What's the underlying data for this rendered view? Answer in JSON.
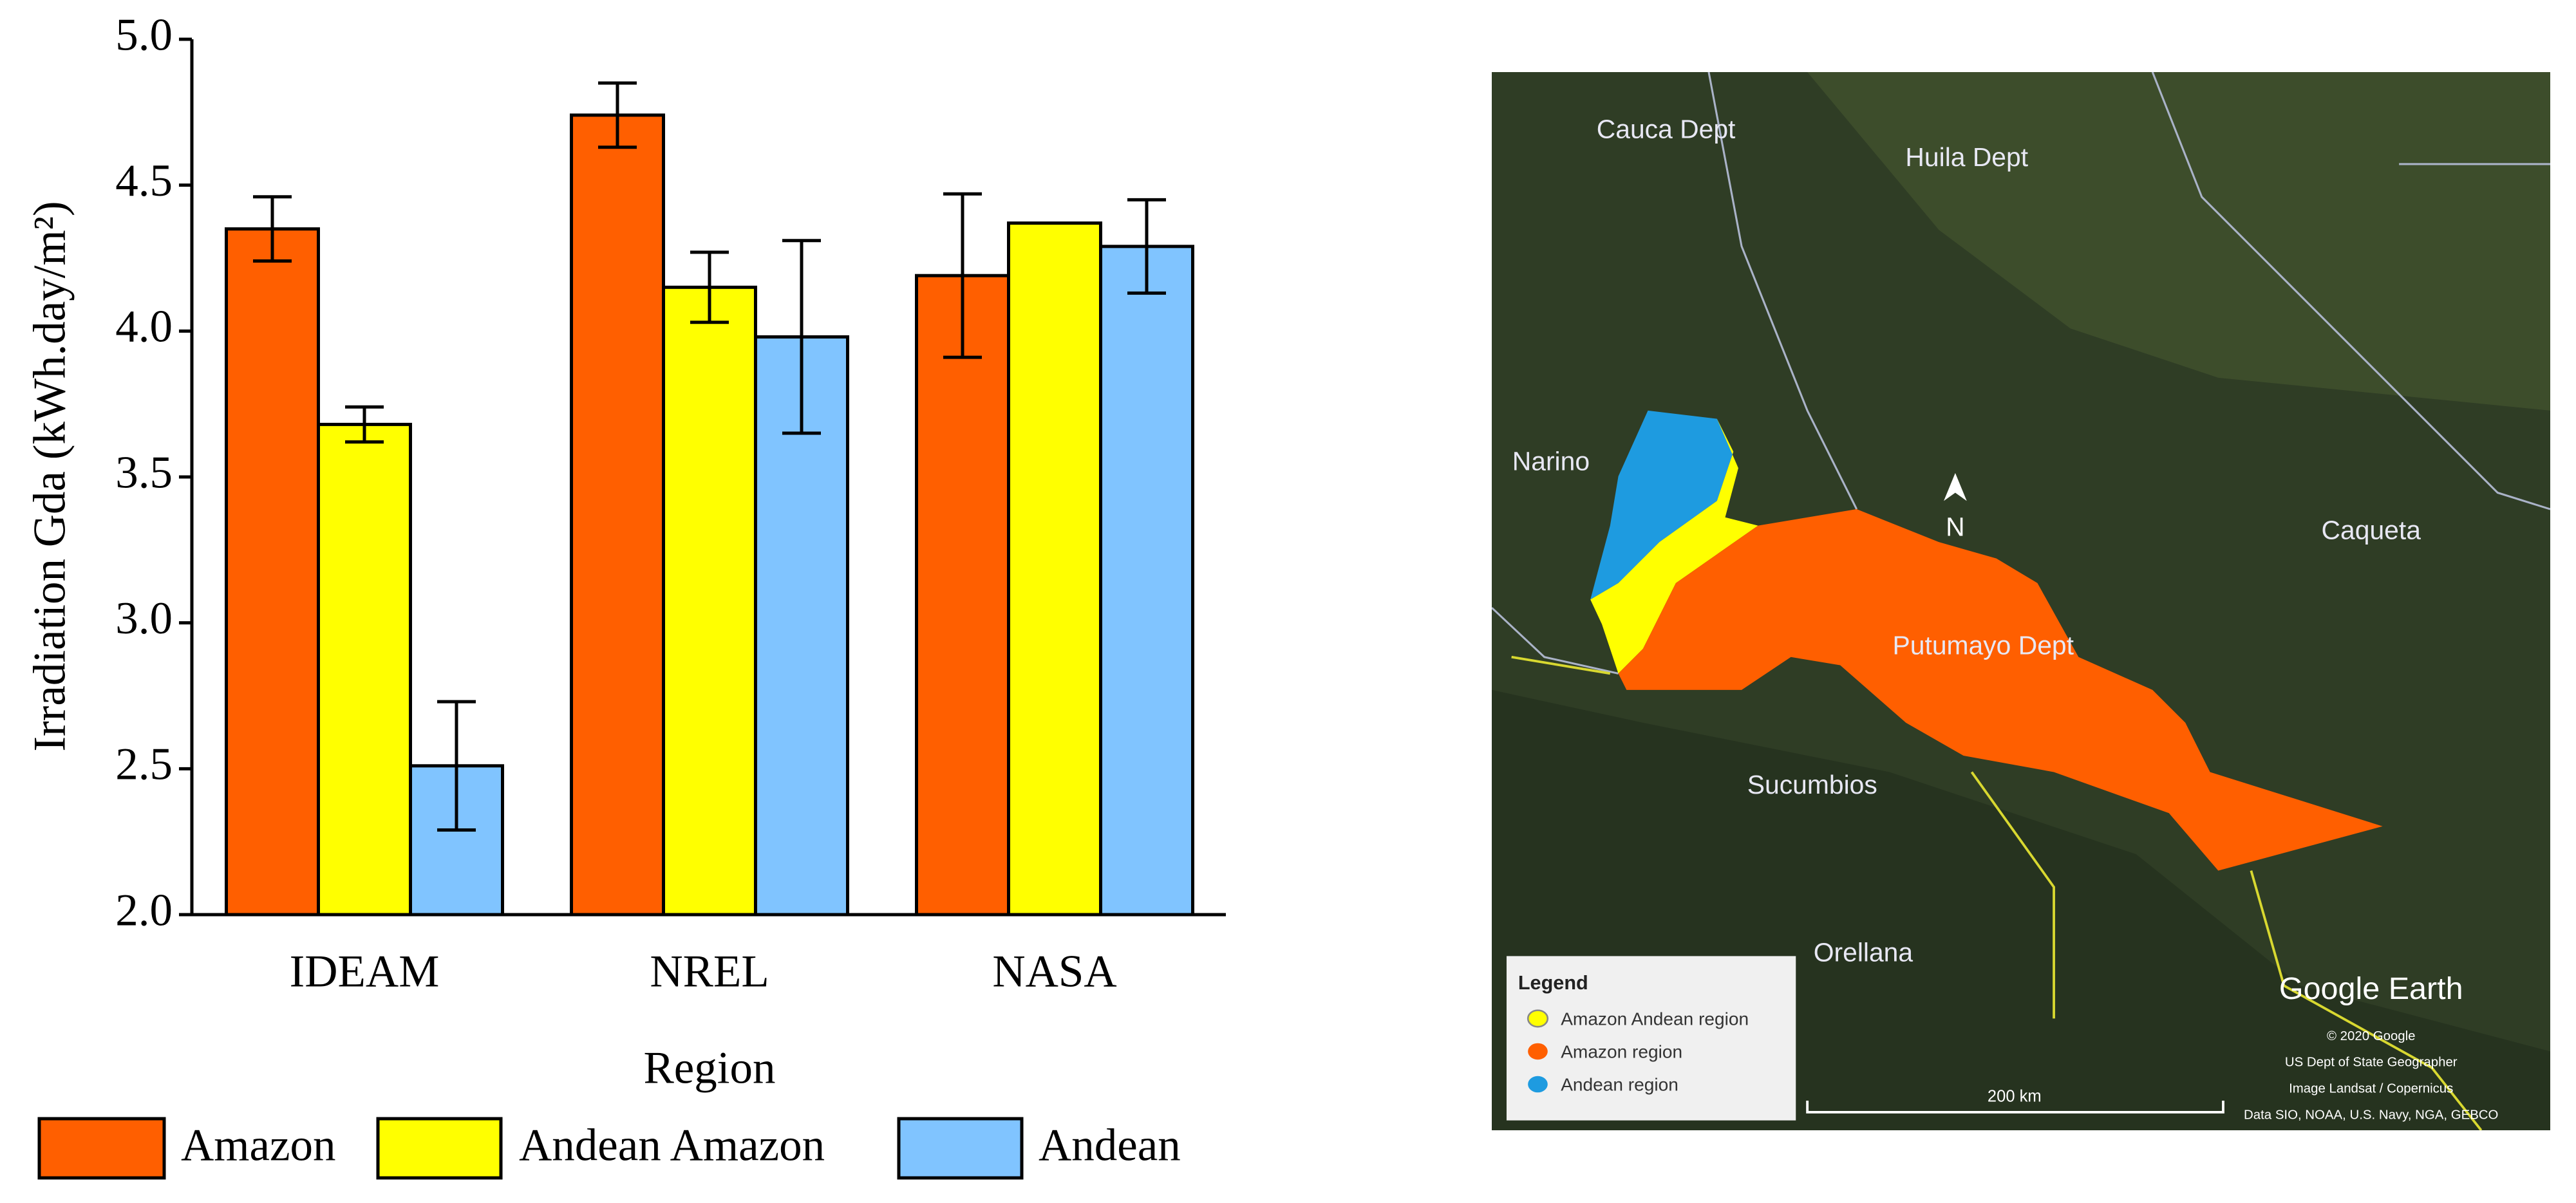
{
  "chart_data": {
    "type": "bar",
    "x_label": "Region",
    "y_label": "Irradiation Gda (kWh.day/m²)",
    "categories": [
      "IDEAM",
      "NREL",
      "NASA"
    ],
    "series": [
      {
        "name": "Amazon",
        "color": "#ff5f00",
        "values": [
          4.35,
          4.74,
          4.19
        ],
        "errors": [
          0.11,
          0.11,
          0.28
        ]
      },
      {
        "name": "Andean Amazon",
        "color": "#ffff00",
        "values": [
          3.68,
          4.15,
          4.37
        ],
        "errors": [
          0.06,
          0.12,
          null
        ]
      },
      {
        "name": "Andean",
        "color": "#80c4ff",
        "values": [
          2.51,
          3.98,
          4.29
        ],
        "errors": [
          0.22,
          0.33,
          0.16
        ]
      }
    ],
    "ylim": [
      2.0,
      5.0
    ],
    "yticks": [
      {
        "value": 2.0,
        "label": "2.0"
      },
      {
        "value": 2.5,
        "label": "2.5"
      },
      {
        "value": 3.0,
        "label": "3.0"
      },
      {
        "value": 3.5,
        "label": "3.5"
      },
      {
        "value": 4.0,
        "label": "4.0"
      },
      {
        "value": 4.5,
        "label": "4.5"
      },
      {
        "value": 5.0,
        "label": "5.0"
      }
    ],
    "grid": false,
    "legend": "bottom"
  },
  "map": {
    "labels": [
      "Cauca Dept",
      "Huila Dept",
      "Narino",
      "Caqueta",
      "Putumayo Dept",
      "Sucumbios",
      "Orellana",
      "N"
    ],
    "legend": {
      "title": "Legend",
      "items": [
        "Amazon Andean region",
        "Amazon region",
        "Andean region"
      ]
    },
    "brand": "Google Earth",
    "attribution": [
      "© 2020 Google",
      "US Dept of State Geographer",
      "Image Landsat / Copernicus",
      "Data SIO, NOAA, U.S. Navy, NGA, GEBCO"
    ],
    "scale": "200 km"
  }
}
